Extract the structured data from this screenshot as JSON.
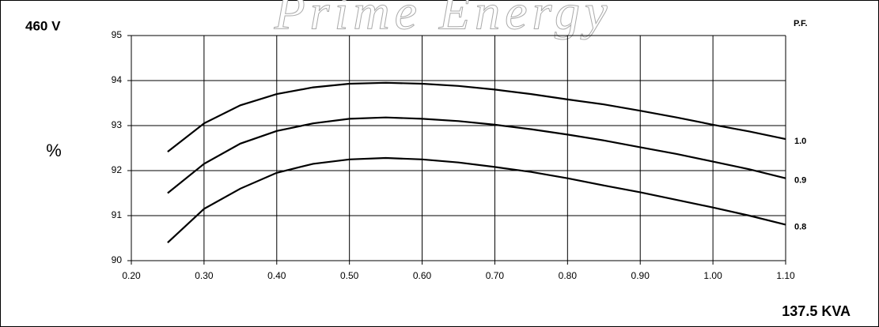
{
  "chart_data": {
    "type": "line",
    "watermark": "Prime Energy",
    "title": "460 V",
    "y_label": "%",
    "legend_title": "P.F.",
    "x_label": "137.5 KVA",
    "x": [
      0.25,
      0.3,
      0.35,
      0.4,
      0.45,
      0.5,
      0.55,
      0.6,
      0.65,
      0.7,
      0.75,
      0.8,
      0.85,
      0.9,
      0.95,
      1.0,
      1.05,
      1.1
    ],
    "series": [
      {
        "name": "1.0",
        "color": "#000000",
        "values": [
          92.42,
          93.05,
          93.45,
          93.7,
          93.85,
          93.93,
          93.95,
          93.93,
          93.88,
          93.8,
          93.7,
          93.58,
          93.47,
          93.33,
          93.18,
          93.02,
          92.87,
          92.7
        ]
      },
      {
        "name": "0.9",
        "color": "#000000",
        "values": [
          91.5,
          92.15,
          92.6,
          92.88,
          93.05,
          93.15,
          93.18,
          93.15,
          93.1,
          93.02,
          92.92,
          92.8,
          92.67,
          92.52,
          92.37,
          92.2,
          92.03,
          91.83
        ]
      },
      {
        "name": "0.8",
        "color": "#000000",
        "values": [
          90.4,
          91.15,
          91.6,
          91.95,
          92.15,
          92.25,
          92.28,
          92.25,
          92.18,
          92.08,
          91.97,
          91.83,
          91.67,
          91.52,
          91.35,
          91.18,
          91.0,
          90.8
        ]
      }
    ],
    "xlim": [
      0.2,
      1.1
    ],
    "xticks": [
      {
        "value": 0.2,
        "label": "0.20"
      },
      {
        "value": 0.3,
        "label": "0.30"
      },
      {
        "value": 0.4,
        "label": "0.40"
      },
      {
        "value": 0.5,
        "label": "0.50"
      },
      {
        "value": 0.6,
        "label": "0.60"
      },
      {
        "value": 0.7,
        "label": "0.70"
      },
      {
        "value": 0.8,
        "label": "0.80"
      },
      {
        "value": 0.9,
        "label": "0.90"
      },
      {
        "value": 1.0,
        "label": "1.00"
      },
      {
        "value": 1.1,
        "label": "1.10"
      }
    ],
    "ylim": [
      90,
      95
    ],
    "yticks": [
      90,
      91,
      92,
      93,
      94,
      95
    ],
    "grid": true
  }
}
